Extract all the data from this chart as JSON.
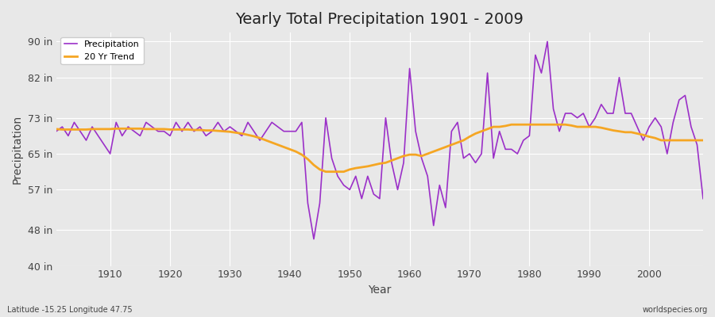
{
  "title": "Yearly Total Precipitation 1901 - 2009",
  "xlabel": "Year",
  "ylabel": "Precipitation",
  "lat_lon_label": "Latitude -15.25 Longitude 47.75",
  "source_label": "worldspecies.org",
  "ylim": [
    40,
    92
  ],
  "yticks": [
    40,
    48,
    57,
    65,
    73,
    82,
    90
  ],
  "ytick_labels": [
    "40 in",
    "48 in",
    "57 in",
    "65 in",
    "73 in",
    "82 in",
    "90 in"
  ],
  "bg_color": "#e8e8e8",
  "plot_bg_color": "#e8e8e8",
  "precip_color": "#9b30c8",
  "trend_color": "#f5a623",
  "years": [
    1901,
    1902,
    1903,
    1904,
    1905,
    1906,
    1907,
    1908,
    1909,
    1910,
    1911,
    1912,
    1913,
    1914,
    1915,
    1916,
    1917,
    1918,
    1919,
    1920,
    1921,
    1922,
    1923,
    1924,
    1925,
    1926,
    1927,
    1928,
    1929,
    1930,
    1931,
    1932,
    1933,
    1934,
    1935,
    1936,
    1937,
    1938,
    1939,
    1940,
    1941,
    1942,
    1943,
    1944,
    1945,
    1946,
    1947,
    1948,
    1949,
    1950,
    1951,
    1952,
    1953,
    1954,
    1955,
    1956,
    1957,
    1958,
    1959,
    1960,
    1961,
    1962,
    1963,
    1964,
    1965,
    1966,
    1967,
    1968,
    1969,
    1970,
    1971,
    1972,
    1973,
    1974,
    1975,
    1976,
    1977,
    1978,
    1979,
    1980,
    1981,
    1982,
    1983,
    1984,
    1985,
    1986,
    1987,
    1988,
    1989,
    1990,
    1991,
    1992,
    1993,
    1994,
    1995,
    1996,
    1997,
    1998,
    1999,
    2000,
    2001,
    2002,
    2003,
    2004,
    2005,
    2006,
    2007,
    2008,
    2009
  ],
  "precip": [
    70,
    71,
    69,
    72,
    70,
    68,
    71,
    69,
    67,
    65,
    72,
    69,
    71,
    70,
    69,
    72,
    71,
    70,
    70,
    69,
    72,
    70,
    72,
    70,
    71,
    69,
    70,
    72,
    70,
    71,
    70,
    69,
    72,
    70,
    68,
    70,
    72,
    71,
    70,
    70,
    70,
    72,
    54,
    46,
    54,
    73,
    64,
    60,
    58,
    57,
    60,
    55,
    60,
    56,
    55,
    73,
    63,
    57,
    63,
    84,
    70,
    64,
    60,
    49,
    58,
    53,
    70,
    72,
    64,
    65,
    63,
    65,
    83,
    64,
    70,
    66,
    66,
    65,
    68,
    69,
    87,
    83,
    90,
    75,
    70,
    74,
    74,
    73,
    74,
    71,
    73,
    76,
    74,
    74,
    82,
    74,
    74,
    71,
    68,
    71,
    73,
    71,
    65,
    72,
    77,
    78,
    71,
    67,
    55
  ],
  "trend": [
    70.5,
    70.4,
    70.4,
    70.4,
    70.4,
    70.4,
    70.5,
    70.5,
    70.5,
    70.5,
    70.6,
    70.6,
    70.6,
    70.6,
    70.6,
    70.5,
    70.5,
    70.5,
    70.5,
    70.4,
    70.4,
    70.4,
    70.4,
    70.3,
    70.3,
    70.2,
    70.2,
    70.1,
    70.0,
    69.9,
    69.7,
    69.5,
    69.2,
    68.9,
    68.5,
    68.0,
    67.5,
    67.0,
    66.5,
    66.0,
    65.5,
    64.8,
    63.8,
    62.5,
    61.5,
    61.0,
    61.0,
    61.0,
    61.0,
    61.5,
    61.8,
    62.0,
    62.2,
    62.5,
    62.8,
    63.0,
    63.5,
    64.0,
    64.5,
    64.8,
    64.8,
    64.5,
    65.0,
    65.5,
    66.0,
    66.5,
    67.0,
    67.5,
    68.0,
    68.8,
    69.5,
    70.0,
    70.5,
    71.0,
    71.0,
    71.2,
    71.5,
    71.5,
    71.5,
    71.5,
    71.5,
    71.5,
    71.5,
    71.5,
    71.5,
    71.5,
    71.3,
    71.0,
    71.0,
    71.0,
    71.0,
    70.8,
    70.5,
    70.2,
    70.0,
    69.8,
    69.8,
    69.5,
    69.2,
    68.8,
    68.5,
    68.0,
    68.0,
    68.0,
    68.0,
    68.0,
    68.0,
    68.0,
    68.0
  ]
}
